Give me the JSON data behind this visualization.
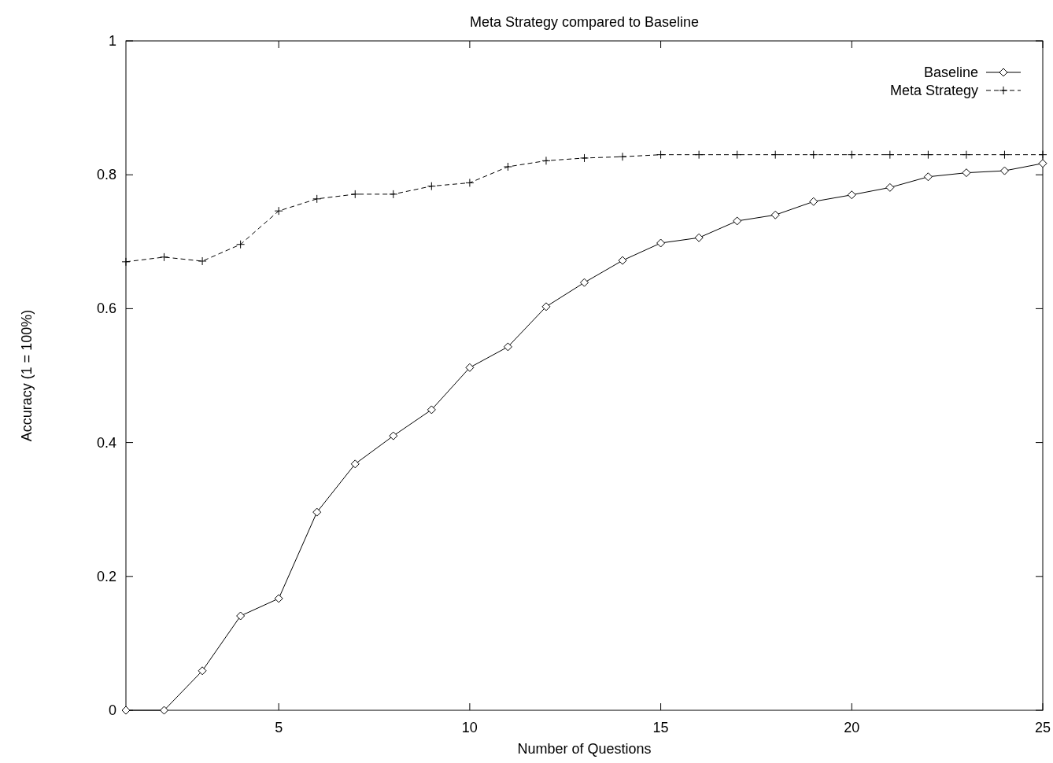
{
  "chart_data": {
    "type": "line",
    "title": "Meta Strategy compared to Baseline",
    "xlabel": "Number of Questions",
    "ylabel": "Accuracy (1 = 100%)",
    "x": [
      1,
      2,
      3,
      4,
      5,
      6,
      7,
      8,
      9,
      10,
      11,
      12,
      13,
      14,
      15,
      16,
      17,
      18,
      19,
      20,
      21,
      22,
      23,
      24,
      25
    ],
    "xlim": [
      1,
      25
    ],
    "xticks": [
      5,
      10,
      15,
      20,
      25
    ],
    "ylim": [
      0,
      1
    ],
    "yticks": [
      0,
      0.2,
      0.4,
      0.6,
      0.8,
      1
    ],
    "legend": "top right",
    "grid": false,
    "series": [
      {
        "name": "Baseline",
        "color": "#000000",
        "marker": "diamond",
        "line_style": "solid",
        "values": [
          0,
          0,
          0.059,
          0.141,
          0.167,
          0.296,
          0.368,
          0.41,
          0.449,
          0.512,
          0.543,
          0.603,
          0.639,
          0.672,
          0.698,
          0.706,
          0.731,
          0.74,
          0.76,
          0.77,
          0.781,
          0.797,
          0.803,
          0.806,
          0.817
        ]
      },
      {
        "name": "Meta Strategy",
        "color": "#000000",
        "marker": "cross",
        "line_style": "dashed",
        "values": [
          0.67,
          0.677,
          0.671,
          0.696,
          0.746,
          0.764,
          0.771,
          0.771,
          0.783,
          0.788,
          0.812,
          0.821,
          0.825,
          0.827,
          0.83,
          0.83,
          0.83,
          0.83,
          0.83,
          0.83,
          0.83,
          0.83,
          0.83,
          0.83,
          0.83
        ]
      }
    ]
  }
}
